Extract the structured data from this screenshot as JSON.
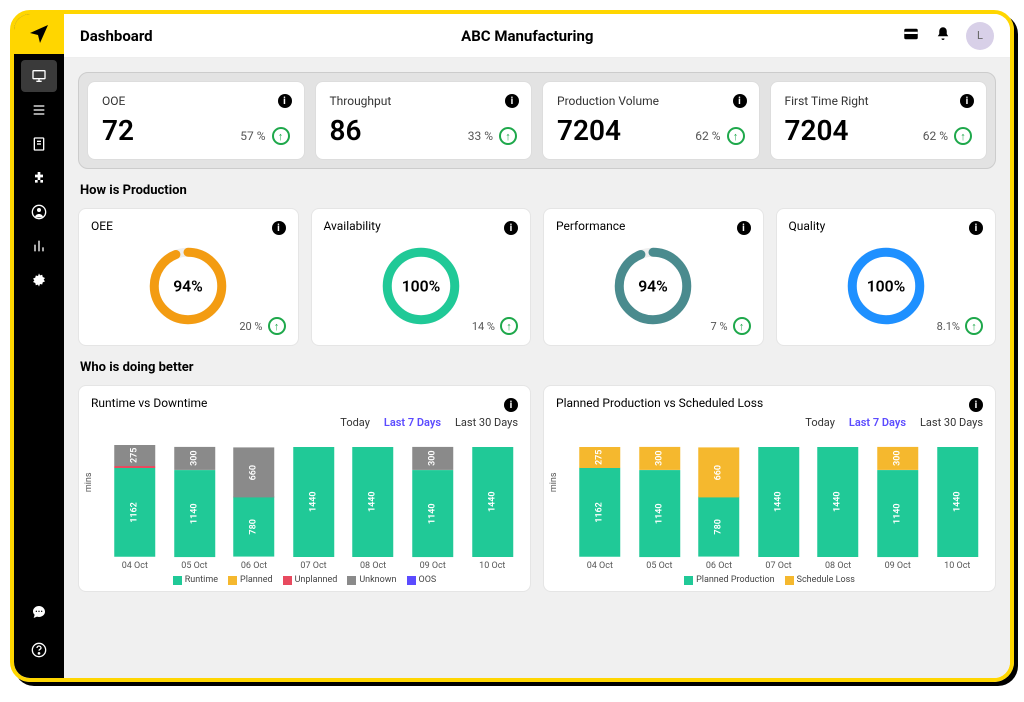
{
  "colors": {
    "frame_border": "#FFD600",
    "sidebar_bg": "#000000",
    "bg": "#f0f0f0",
    "card_bg": "#ffffff",
    "kpi_wrap_bg": "#e3e3e3",
    "up_green": "#1ea84b",
    "runtime": "#20c997",
    "planned": "#f5b82e",
    "unplanned": "#e84a5f",
    "unknown": "#8a8a8a",
    "oos": "#5b4bff",
    "range_active": "#5b4bff"
  },
  "header": {
    "title": "Dashboard",
    "company": "ABC Manufacturing",
    "avatar_initial": "L"
  },
  "kpis": [
    {
      "id": "ooe",
      "label": "OOE",
      "value": "72",
      "delta": "57 %"
    },
    {
      "id": "throughput",
      "label": "Throughput",
      "value": "86",
      "delta": "33 %"
    },
    {
      "id": "production-volume",
      "label": "Production Volume",
      "value": "7204",
      "delta": "62 %"
    },
    {
      "id": "first-time-right",
      "label": "First Time Right",
      "value": "7204",
      "delta": "62 %"
    }
  ],
  "sections": {
    "production": "How is Production",
    "better": "Who is doing better"
  },
  "production": [
    {
      "id": "oee",
      "label": "OEE",
      "pct": 94,
      "delta": "20 %",
      "color": "#f39c12"
    },
    {
      "id": "availability",
      "label": "Availability",
      "pct": 100,
      "delta": "14 %",
      "color": "#20c997"
    },
    {
      "id": "performance",
      "label": "Performance",
      "pct": 94,
      "delta": "7 %",
      "color": "#4a8b8e"
    },
    {
      "id": "quality",
      "label": "Quality",
      "pct": 100,
      "delta": "8.1%",
      "color": "#1e90ff"
    }
  ],
  "chart_shared": {
    "y_label": "mins",
    "x": [
      "04 Oct",
      "05 Oct",
      "06 Oct",
      "07 Oct",
      "08 Oct",
      "09 Oct",
      "10 Oct"
    ],
    "range_tabs": [
      "Today",
      "Last 7 Days",
      "Last 30 Days"
    ],
    "range_active": 1,
    "max_value": 1440
  },
  "chart_runtime": {
    "title": "Runtime vs Downtime",
    "legend": [
      {
        "label": "Runtime",
        "color": "#20c997"
      },
      {
        "label": "Planned",
        "color": "#f5b82e"
      },
      {
        "label": "Unplanned",
        "color": "#e84a5f"
      },
      {
        "label": "Unknown",
        "color": "#8a8a8a"
      },
      {
        "label": "OOS",
        "color": "#5b4bff"
      }
    ],
    "series": [
      [
        {
          "v": 1162,
          "c": "#20c997"
        },
        {
          "v": 10,
          "c": "#e84a5f",
          "hide_label": true
        },
        {
          "v": 275,
          "c": "#8a8a8a"
        }
      ],
      [
        {
          "v": 1140,
          "c": "#20c997"
        },
        {
          "v": 300,
          "c": "#8a8a8a"
        }
      ],
      [
        {
          "v": 780,
          "c": "#20c997"
        },
        {
          "v": 660,
          "c": "#8a8a8a"
        }
      ],
      [
        {
          "v": 1440,
          "c": "#20c997"
        }
      ],
      [
        {
          "v": 1440,
          "c": "#20c997"
        }
      ],
      [
        {
          "v": 1140,
          "c": "#20c997"
        },
        {
          "v": 300,
          "c": "#8a8a8a"
        }
      ],
      [
        {
          "v": 1440,
          "c": "#20c997"
        }
      ]
    ]
  },
  "chart_planned": {
    "title": "Planned Production vs Scheduled Loss",
    "legend": [
      {
        "label": "Planned Production",
        "color": "#20c997"
      },
      {
        "label": "Schedule Loss",
        "color": "#f5b82e"
      }
    ],
    "series": [
      [
        {
          "v": 1162,
          "c": "#20c997"
        },
        {
          "v": 275,
          "c": "#f5b82e"
        }
      ],
      [
        {
          "v": 1140,
          "c": "#20c997"
        },
        {
          "v": 300,
          "c": "#f5b82e"
        }
      ],
      [
        {
          "v": 780,
          "c": "#20c997"
        },
        {
          "v": 660,
          "c": "#f5b82e"
        }
      ],
      [
        {
          "v": 1440,
          "c": "#20c997"
        }
      ],
      [
        {
          "v": 1440,
          "c": "#20c997"
        }
      ],
      [
        {
          "v": 1140,
          "c": "#20c997"
        },
        {
          "v": 300,
          "c": "#f5b82e"
        }
      ],
      [
        {
          "v": 1440,
          "c": "#20c997"
        }
      ]
    ]
  }
}
